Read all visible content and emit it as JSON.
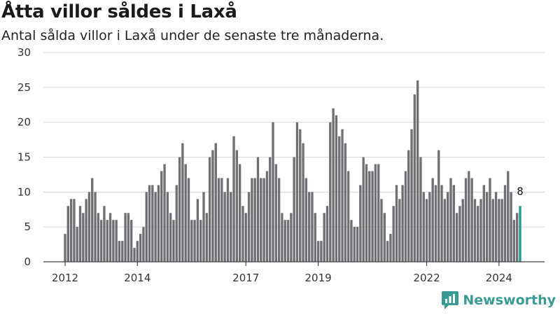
{
  "header": {
    "title": "Åtta villor såldes i Laxå",
    "subtitle": "Antal sålda villor i Laxå under de senaste tre månaderna."
  },
  "brand": {
    "name": "Newsworthy",
    "color": "#3a9b95"
  },
  "colors": {
    "bar": "#707074",
    "highlight": "#2a9690",
    "grid": "#d8d8d8",
    "axis": "#444444"
  },
  "chart_data": {
    "type": "bar",
    "title": "Åtta villor såldes i Laxå",
    "subtitle": "Antal sålda villor i Laxå under de senaste tre månaderna.",
    "xlabel": "",
    "ylabel": "",
    "ylim": [
      0,
      30
    ],
    "yticks": [
      0,
      5,
      10,
      15,
      20,
      25,
      30
    ],
    "grid": true,
    "x_start": "2012-01",
    "x_end": "2024-10",
    "x_tick_labels": [
      "2012",
      "2014",
      "2017",
      "2019",
      "2022",
      "2024"
    ],
    "x_tick_months": [
      "2012-01",
      "2014-01",
      "2017-01",
      "2019-01",
      "2022-01",
      "2024-01"
    ],
    "values": [
      4,
      8,
      9,
      9,
      5,
      8,
      7,
      9,
      10,
      12,
      10,
      7,
      6,
      8,
      6,
      7,
      6,
      6,
      3,
      3,
      7,
      7,
      6,
      2,
      3,
      4,
      5,
      10,
      11,
      11,
      10,
      11,
      13,
      14,
      10,
      7,
      6,
      11,
      15,
      17,
      14,
      12,
      6,
      6,
      9,
      6,
      10,
      7,
      15,
      16,
      17,
      12,
      12,
      10,
      12,
      10,
      18,
      16,
      14,
      8,
      7,
      10,
      12,
      12,
      15,
      12,
      12,
      13,
      15,
      20,
      14,
      12,
      7,
      6,
      6,
      7,
      15,
      20,
      19,
      17,
      12,
      10,
      10,
      7,
      3,
      3,
      7,
      8,
      20,
      22,
      21,
      18,
      19,
      17,
      13,
      6,
      5,
      5,
      11,
      15,
      14,
      13,
      13,
      14,
      14,
      9,
      7,
      3,
      4,
      8,
      11,
      9,
      11,
      13,
      16,
      19,
      24,
      26,
      15,
      10,
      9,
      10,
      12,
      11,
      16,
      11,
      9,
      10,
      12,
      11,
      7,
      8,
      9,
      12,
      13,
      12,
      9,
      8,
      9,
      11,
      10,
      12,
      9,
      10,
      9,
      9,
      11,
      13,
      10,
      6,
      7,
      8
    ],
    "highlight_last": true,
    "annotations": [
      {
        "label": "8",
        "target": "last"
      }
    ]
  }
}
